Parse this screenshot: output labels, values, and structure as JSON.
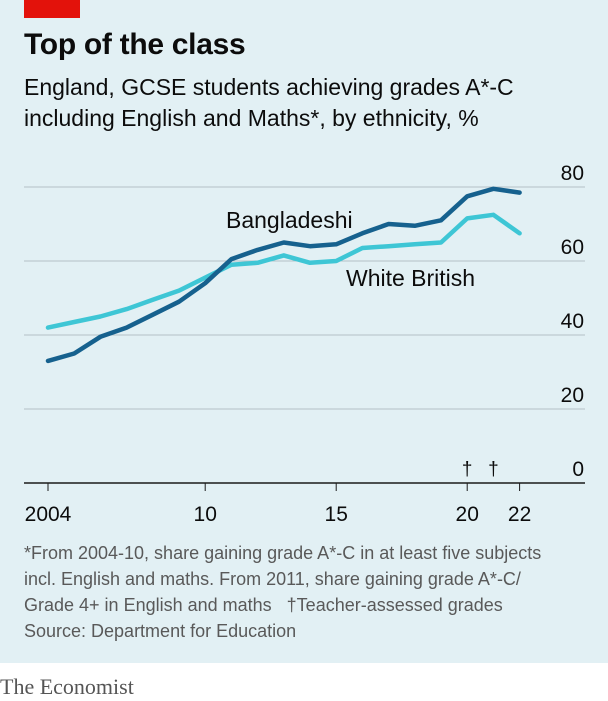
{
  "header": {
    "title": "Top of the class",
    "subtitle": "England, GCSE students achieving grades A*-C including English and Maths*, by ethnicity, %"
  },
  "chart_data": {
    "type": "line",
    "x": [
      2004,
      2005,
      2006,
      2007,
      2008,
      2009,
      2010,
      2011,
      2012,
      2013,
      2014,
      2015,
      2016,
      2017,
      2018,
      2019,
      2020,
      2021,
      2022
    ],
    "x_tick_values": [
      2004,
      2010,
      2015,
      2020,
      2022
    ],
    "x_tick_labels": [
      "2004",
      "10",
      "15",
      "20",
      "22"
    ],
    "y_tick_values": [
      0,
      20,
      40,
      60,
      80
    ],
    "y_tick_labels": [
      "0",
      "20",
      "40",
      "60",
      "80"
    ],
    "ylim": [
      0,
      80
    ],
    "xlim": [
      2004,
      2022
    ],
    "grid": true,
    "series": [
      {
        "name": "White British",
        "color": "#3ec6d5",
        "values": [
          42.0,
          43.5,
          45.0,
          47.0,
          49.5,
          52.0,
          55.5,
          59.0,
          59.5,
          61.5,
          59.5,
          60.0,
          63.5,
          64.0,
          64.5,
          65.0,
          71.5,
          72.5,
          67.5
        ]
      },
      {
        "name": "Bangladeshi",
        "color": "#16618e",
        "values": [
          33.0,
          35.0,
          39.5,
          42.0,
          45.5,
          49.0,
          54.0,
          60.5,
          63.0,
          65.0,
          64.0,
          64.5,
          67.5,
          70.0,
          69.5,
          71.0,
          77.5,
          79.5,
          78.5
        ]
      }
    ],
    "annotation_mark": "†",
    "annotated_years": [
      2020,
      2021
    ]
  },
  "footnotes": {
    "line1": "*From 2004-10, share gaining grade A*-C in at least five subjects",
    "line2": "incl. English and maths. From 2011, share gaining grade A*-C/",
    "line3": "Grade 4+ in English and maths",
    "dagger_note": "†Teacher-assessed grades",
    "source": "Source: Department for Education"
  },
  "brand": "The Economist"
}
